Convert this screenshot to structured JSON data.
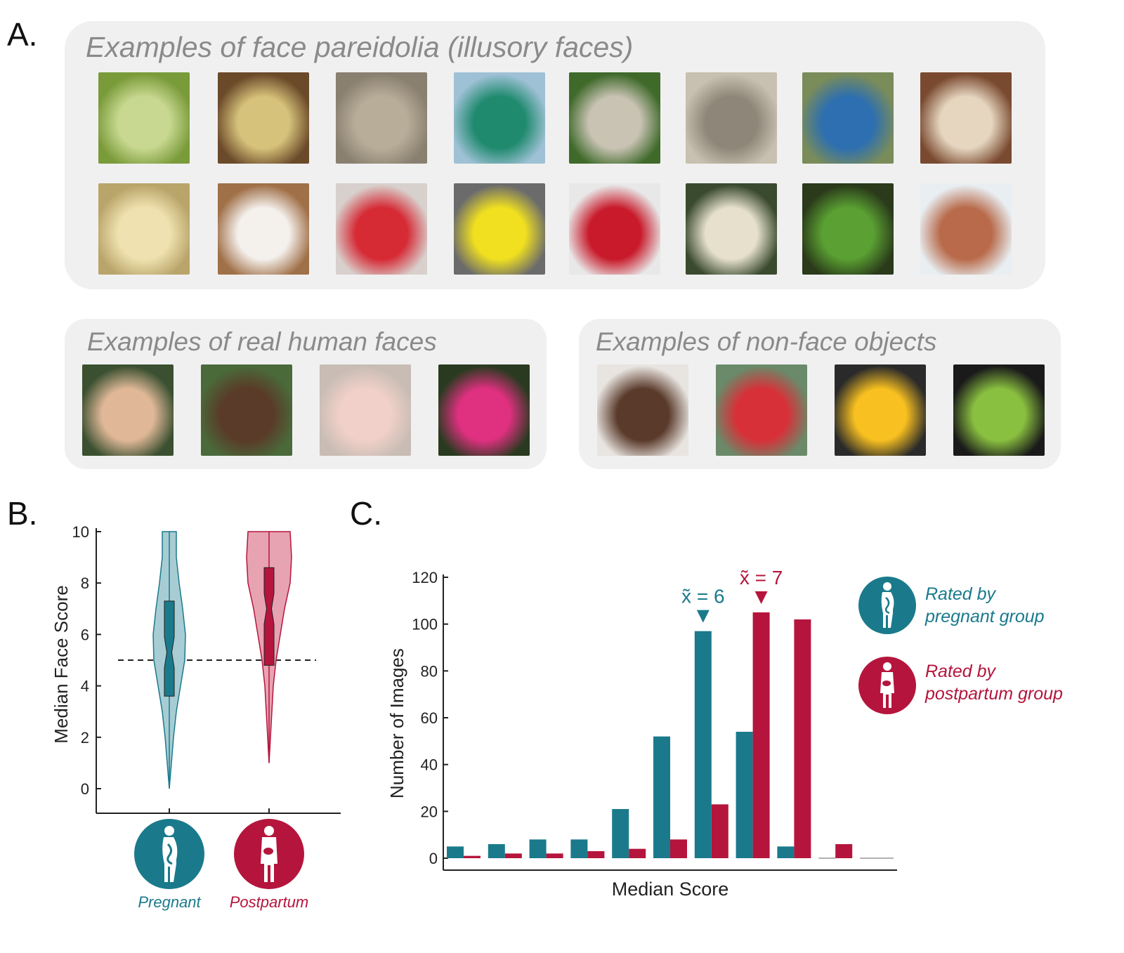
{
  "panels": {
    "a_label": "A.",
    "b_label": "B.",
    "c_label": "C."
  },
  "panel_a": {
    "pareidolia_title": "Examples of face pareidolia (illusory faces)",
    "human_title": "Examples of real human faces",
    "nonface_title": "Examples of non-face objects",
    "pareidolia_images": [
      "bitter-melon-face",
      "handbag-face",
      "tree-trunk-face",
      "binocular-viewer-face",
      "rusty-bowl-face",
      "pruning-shears-face",
      "mop-face",
      "pie-crust-face",
      "pasta-face",
      "coffee-cup-face",
      "red-scooter-face",
      "yellow-kayaks-face",
      "washing-machine-face",
      "cheese-slice-face",
      "green-pepper-face",
      "building-facade-face"
    ],
    "human_images": [
      "woman-with-scarf",
      "smiling-man-glasses",
      "baby-with-bow",
      "two-men-smiling"
    ],
    "nonface_images": [
      "hamburger",
      "stand-mixer",
      "fried-egg",
      "green-pepper-slices"
    ]
  },
  "colors": {
    "pregnant": "#1a7a8c",
    "pregnant_light": "#a8ccd3",
    "postpartum": "#b5153c",
    "postpartum_light": "#e8a3b3",
    "box_bg": "#f0f0f0",
    "title_gray": "#8a8a8a"
  },
  "chart_data": [
    {
      "type": "violin",
      "ylabel": "Median Face Score",
      "ylim": [
        0,
        10
      ],
      "yticks": [
        "0",
        "2",
        "4",
        "6",
        "8",
        "10"
      ],
      "reference_line": 5,
      "groups": [
        {
          "name": "Pregnant",
          "min": 0,
          "q1": 3.6,
          "median": 5.3,
          "q3": 7.3,
          "max": 10
        },
        {
          "name": "Postpartum",
          "min": 1,
          "q1": 4.8,
          "median": 7,
          "q3": 8.6,
          "max": 10
        }
      ]
    },
    {
      "type": "bar",
      "xlabel": "Median Score",
      "ylabel": "Number of Images",
      "ylim": [
        0,
        120
      ],
      "yticks": [
        "0",
        "20",
        "40",
        "60",
        "80",
        "100",
        "120"
      ],
      "categories": [
        "0",
        "1",
        "2",
        "3",
        "4",
        "5",
        "6",
        "7",
        "8",
        "9",
        "10"
      ],
      "series": [
        {
          "name": "Rated by pregnant group",
          "values": [
            5,
            6,
            8,
            8,
            21,
            52,
            97,
            54,
            5,
            0,
            0
          ]
        },
        {
          "name": "Rated by postpartum group",
          "values": [
            1,
            2,
            2,
            3,
            4,
            8,
            23,
            105,
            102,
            6,
            0
          ]
        }
      ],
      "annotations": [
        {
          "text": "x̃ = 6",
          "category": "6",
          "series": 0
        },
        {
          "text": "x̃ = 7",
          "category": "7",
          "series": 1
        }
      ],
      "legend": {
        "position": "right",
        "pregnant_line1": "Rated by",
        "pregnant_line2": "pregnant group",
        "postpartum_line1": "Rated by",
        "postpartum_line2": "postpartum group"
      }
    }
  ],
  "panel_b_icons": {
    "pregnant_caption": "Pregnant",
    "postpartum_caption": "Postpartum"
  }
}
